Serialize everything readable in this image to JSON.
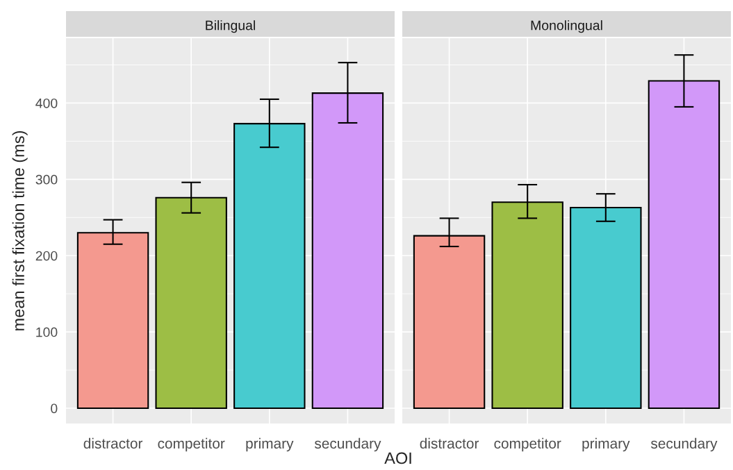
{
  "chart_data": [
    {
      "type": "bar",
      "title": "Bilingual",
      "ylabel": "mean first fixation time (ms)",
      "xlabel": "AOI",
      "categories": [
        "distractor",
        "competitor",
        "primary",
        "secundary"
      ],
      "values": [
        230,
        276,
        373,
        413
      ],
      "errors": [
        [
          215,
          247
        ],
        [
          256,
          296
        ],
        [
          342,
          405
        ],
        [
          374,
          453
        ]
      ],
      "colors": [
        "#f4998f",
        "#9dbe45",
        "#48cbcf",
        "#d298f9"
      ],
      "ylim": [
        -20,
        485
      ],
      "yticks": [
        0,
        100,
        200,
        300,
        400
      ],
      "grid": true,
      "legend": false
    },
    {
      "type": "bar",
      "title": "Monolingual",
      "categories": [
        "distractor",
        "competitor",
        "primary",
        "secundary"
      ],
      "values": [
        226,
        270,
        263,
        429
      ],
      "errors": [
        [
          212,
          249
        ],
        [
          249,
          293
        ],
        [
          245,
          281
        ],
        [
          395,
          463
        ]
      ],
      "colors": [
        "#f4998f",
        "#9dbe45",
        "#48cbcf",
        "#d298f9"
      ],
      "ylim": [
        -20,
        485
      ],
      "yticks": [
        0,
        100,
        200,
        300,
        400
      ],
      "tick_labels": "x",
      "grid": true,
      "legend": false
    }
  ]
}
